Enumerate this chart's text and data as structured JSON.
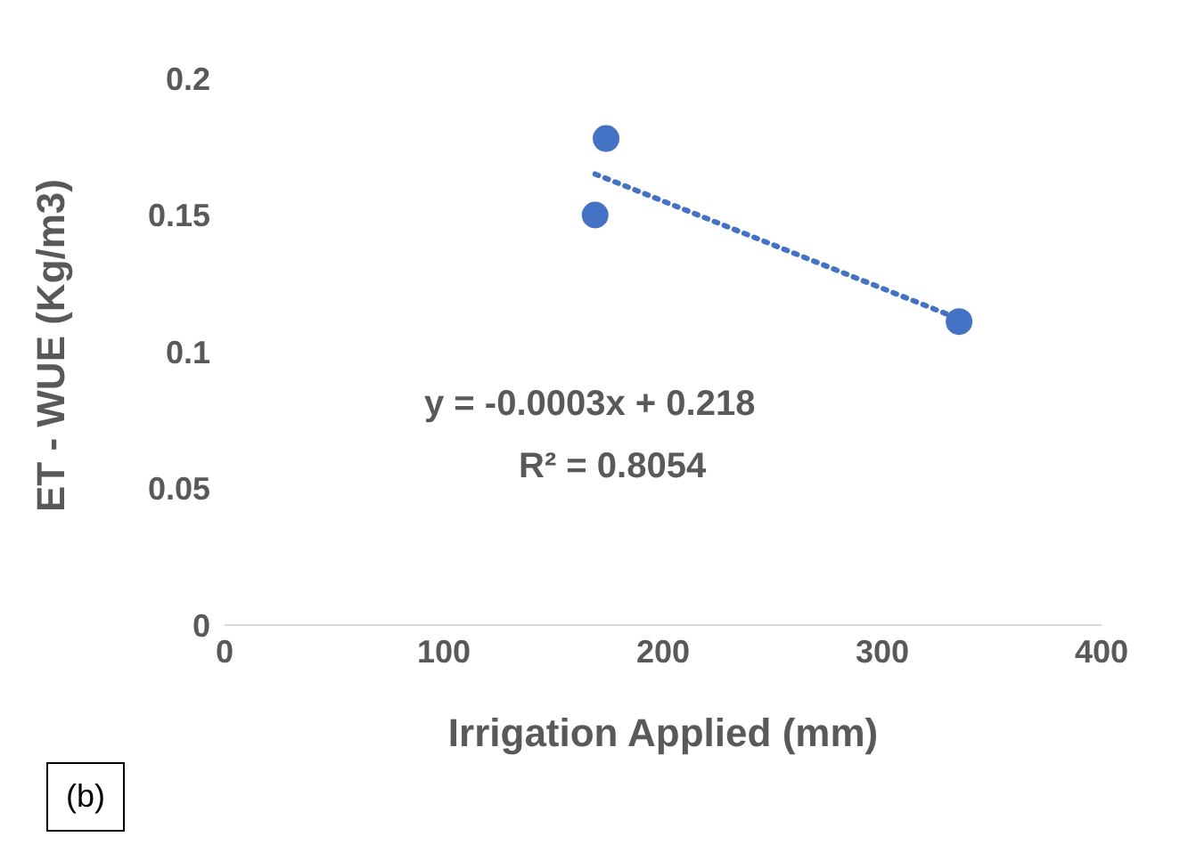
{
  "chart_data": {
    "type": "scatter",
    "xlabel": "Irrigation Applied (mm)",
    "ylabel": "ET - WUE (Kg/m3)",
    "xlim": [
      0,
      400
    ],
    "xticks": [
      0,
      100,
      200,
      300,
      400
    ],
    "ylim": [
      0,
      0.2
    ],
    "yticks": [
      0,
      0.05,
      0.1,
      0.15,
      0.2
    ],
    "grid": false,
    "marker": "circle",
    "series": [
      {
        "color": "#4472c4",
        "x": [
          169,
          174,
          335
        ],
        "values": [
          0.15,
          0.178,
          0.111
        ]
      },
      {
        "type": "line",
        "color": "#4472c4",
        "line_style": "dotted",
        "marker": "none",
        "x": [
          169,
          335
        ],
        "values": [
          0.165,
          0.112
        ]
      }
    ],
    "annotations": [
      "y = -0.0003x + 0.218",
      "R² = 0.8054",
      "(b)"
    ]
  }
}
